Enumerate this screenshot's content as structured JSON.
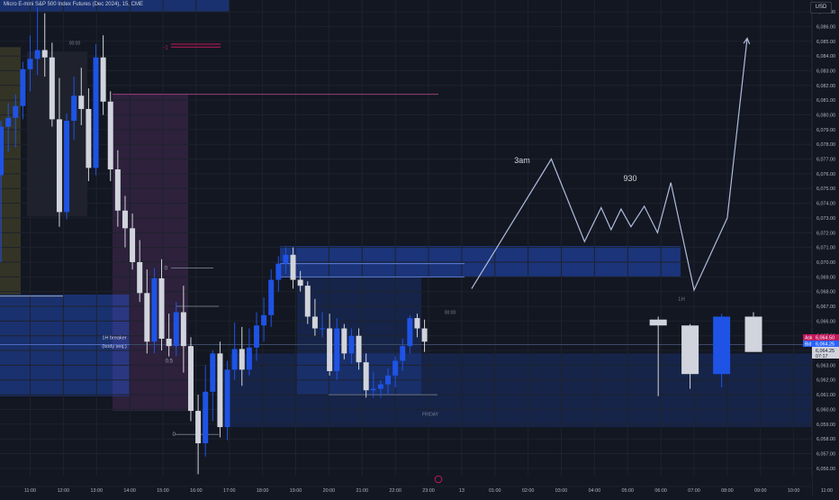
{
  "header": {
    "title": "Micro E-mini S&P 500 Index Futures (Dec 2024), 15, CME",
    "currency": "USD"
  },
  "chart_data": {
    "type": "candlestick",
    "title": "Micro E-mini S&P 500 Index Futures (Dec 2024), 15, CME",
    "y_axis": {
      "min": 6055.5,
      "max": 6087.8,
      "tick_labels": [
        "6,087.00",
        "6,086.00",
        "6,085.00",
        "6,084.00",
        "6,083.00",
        "6,082.00",
        "6,081.00",
        "6,080.00",
        "6,079.00",
        "6,078.00",
        "6,077.00",
        "6,076.00",
        "6,075.00",
        "6,074.00",
        "6,073.00",
        "6,072.00",
        "6,071.00",
        "6,070.00",
        "6,069.00",
        "6,068.00",
        "6,067.00",
        "6,066.00",
        "6,065.00",
        "6,064.00",
        "6,063.00",
        "6,062.00",
        "6,061.00",
        "6,060.00",
        "6,059.00",
        "6,058.00",
        "6,057.00",
        "6,056.00"
      ]
    },
    "x_axis": {
      "labels": [
        {
          "t": 11,
          "label": "11:00"
        },
        {
          "t": 12,
          "label": "12:00"
        },
        {
          "t": 13,
          "label": "13:00"
        },
        {
          "t": 14,
          "label": "14:00"
        },
        {
          "t": 15,
          "label": "15:00"
        },
        {
          "t": 16,
          "label": "16:00"
        },
        {
          "t": 17,
          "label": "17:00"
        },
        {
          "t": 18,
          "label": "18:00"
        },
        {
          "t": 19,
          "label": "19:00"
        },
        {
          "t": 20,
          "label": "20:00"
        },
        {
          "t": 21,
          "label": "21:00"
        },
        {
          "t": 22,
          "label": "22:00"
        },
        {
          "t": 23,
          "label": "23:00"
        },
        {
          "t": 24,
          "label": "13"
        },
        {
          "t": 25,
          "label": "01:00"
        },
        {
          "t": 26,
          "label": "02:00"
        },
        {
          "t": 27,
          "label": "03:00"
        },
        {
          "t": 28,
          "label": "04:00"
        },
        {
          "t": 29,
          "label": "05:00"
        },
        {
          "t": 30,
          "label": "06:00"
        },
        {
          "t": 31,
          "label": "07:00"
        },
        {
          "t": 32,
          "label": "08:00"
        },
        {
          "t": 33,
          "label": "09:00"
        },
        {
          "t": 34,
          "label": "10:00"
        },
        {
          "t": 35,
          "label": "11:00"
        }
      ]
    },
    "candles": [
      {
        "t": 10.12,
        "o": 6075.9,
        "h": 6079.6,
        "l": 6070.0,
        "c": 6079.2
      },
      {
        "t": 10.34,
        "o": 6079.2,
        "h": 6080.8,
        "l": 6077.5,
        "c": 6079.8
      },
      {
        "t": 10.56,
        "o": 6079.8,
        "h": 6081.4,
        "l": 6077.8,
        "c": 6080.6
      },
      {
        "t": 10.78,
        "o": 6080.6,
        "h": 6083.6,
        "l": 6079.7,
        "c": 6083.1
      },
      {
        "t": 11.0,
        "o": 6083.1,
        "h": 6085.4,
        "l": 6081.6,
        "c": 6083.8
      },
      {
        "t": 11.22,
        "o": 6083.8,
        "h": 6087.3,
        "l": 6082.7,
        "c": 6084.4
      },
      {
        "t": 11.44,
        "o": 6084.4,
        "h": 6086.9,
        "l": 6082.6,
        "c": 6083.9
      },
      {
        "t": 11.66,
        "o": 6083.9,
        "h": 6084.9,
        "l": 6079.2,
        "c": 6079.7
      },
      {
        "t": 11.88,
        "o": 6079.7,
        "h": 6082.5,
        "l": 6072.4,
        "c": 6073.4
      },
      {
        "t": 12.1,
        "o": 6073.4,
        "h": 6080.1,
        "l": 6072.9,
        "c": 6079.6
      },
      {
        "t": 12.32,
        "o": 6079.6,
        "h": 6082.6,
        "l": 6078.3,
        "c": 6081.3
      },
      {
        "t": 12.54,
        "o": 6081.3,
        "h": 6083.2,
        "l": 6079.3,
        "c": 6080.4
      },
      {
        "t": 12.76,
        "o": 6080.4,
        "h": 6081.8,
        "l": 6075.5,
        "c": 6076.4
      },
      {
        "t": 12.98,
        "o": 6076.4,
        "h": 6084.8,
        "l": 6075.9,
        "c": 6083.9
      },
      {
        "t": 13.2,
        "o": 6083.9,
        "h": 6085.4,
        "l": 6080.0,
        "c": 6080.9
      },
      {
        "t": 13.42,
        "o": 6080.9,
        "h": 6081.6,
        "l": 6075.5,
        "c": 6076.3
      },
      {
        "t": 13.64,
        "o": 6076.3,
        "h": 6077.6,
        "l": 6072.4,
        "c": 6073.5
      },
      {
        "t": 13.86,
        "o": 6073.5,
        "h": 6074.5,
        "l": 6071.0,
        "c": 6072.3
      },
      {
        "t": 14.08,
        "o": 6072.3,
        "h": 6073.3,
        "l": 6069.5,
        "c": 6070.0
      },
      {
        "t": 14.3,
        "o": 6070.0,
        "h": 6071.5,
        "l": 6067.3,
        "c": 6067.9
      },
      {
        "t": 14.52,
        "o": 6067.9,
        "h": 6069.5,
        "l": 6063.8,
        "c": 6064.6
      },
      {
        "t": 14.74,
        "o": 6064.6,
        "h": 6069.6,
        "l": 6063.8,
        "c": 6068.9
      },
      {
        "t": 14.96,
        "o": 6068.9,
        "h": 6070.2,
        "l": 6064.0,
        "c": 6064.8
      },
      {
        "t": 15.18,
        "o": 6064.8,
        "h": 6066.5,
        "l": 6063.6,
        "c": 6064.3
      },
      {
        "t": 15.4,
        "o": 6064.3,
        "h": 6067.3,
        "l": 6063.6,
        "c": 6066.6
      },
      {
        "t": 15.62,
        "o": 6066.6,
        "h": 6068.4,
        "l": 6062.5,
        "c": 6064.3
      },
      {
        "t": 15.84,
        "o": 6064.3,
        "h": 6064.9,
        "l": 6059.2,
        "c": 6059.9
      },
      {
        "t": 16.06,
        "o": 6059.9,
        "h": 6061.0,
        "l": 6055.6,
        "c": 6057.7
      },
      {
        "t": 16.28,
        "o": 6057.7,
        "h": 6063.0,
        "l": 6056.8,
        "c": 6061.2
      },
      {
        "t": 16.5,
        "o": 6061.2,
        "h": 6064.0,
        "l": 6059.2,
        "c": 6063.8
      },
      {
        "t": 16.72,
        "o": 6063.8,
        "h": 6064.6,
        "l": 6058.1,
        "c": 6058.8
      },
      {
        "t": 16.94,
        "o": 6058.8,
        "h": 6063.3,
        "l": 6057.9,
        "c": 6062.7
      },
      {
        "t": 17.16,
        "o": 6062.7,
        "h": 6065.9,
        "l": 6062.0,
        "c": 6064.1
      },
      {
        "t": 17.38,
        "o": 6064.1,
        "h": 6065.6,
        "l": 6061.6,
        "c": 6062.7
      },
      {
        "t": 17.6,
        "o": 6062.7,
        "h": 6065.5,
        "l": 6062.3,
        "c": 6064.2
      },
      {
        "t": 17.82,
        "o": 6064.2,
        "h": 6066.6,
        "l": 6063.3,
        "c": 6065.7
      },
      {
        "t": 18.04,
        "o": 6065.7,
        "h": 6067.6,
        "l": 6064.6,
        "c": 6066.4
      },
      {
        "t": 18.26,
        "o": 6066.4,
        "h": 6069.5,
        "l": 6065.6,
        "c": 6068.8
      },
      {
        "t": 18.48,
        "o": 6068.8,
        "h": 6070.4,
        "l": 6068.0,
        "c": 6069.9
      },
      {
        "t": 18.7,
        "o": 6069.9,
        "h": 6071.0,
        "l": 6069.2,
        "c": 6070.5
      },
      {
        "t": 18.92,
        "o": 6070.5,
        "h": 6071.0,
        "l": 6068.2,
        "c": 6068.8
      },
      {
        "t": 19.14,
        "o": 6068.8,
        "h": 6069.4,
        "l": 6068.0,
        "c": 6068.4
      },
      {
        "t": 19.36,
        "o": 6068.4,
        "h": 6068.7,
        "l": 6065.8,
        "c": 6066.3
      },
      {
        "t": 19.58,
        "o": 6066.3,
        "h": 6067.5,
        "l": 6065.0,
        "c": 6065.5
      },
      {
        "t": 19.8,
        "o": 6065.5,
        "h": 6066.6,
        "l": 6064.9,
        "c": 6065.5
      },
      {
        "t": 20.02,
        "o": 6065.5,
        "h": 6066.5,
        "l": 6062.3,
        "c": 6062.6
      },
      {
        "t": 20.24,
        "o": 6062.6,
        "h": 6066.2,
        "l": 6062.0,
        "c": 6065.5
      },
      {
        "t": 20.46,
        "o": 6065.5,
        "h": 6065.8,
        "l": 6063.4,
        "c": 6063.8
      },
      {
        "t": 20.68,
        "o": 6063.8,
        "h": 6065.5,
        "l": 6063.1,
        "c": 6065.0
      },
      {
        "t": 20.9,
        "o": 6065.0,
        "h": 6065.5,
        "l": 6062.7,
        "c": 6063.2
      },
      {
        "t": 21.12,
        "o": 6063.2,
        "h": 6063.8,
        "l": 6060.8,
        "c": 6061.3
      },
      {
        "t": 21.34,
        "o": 6061.3,
        "h": 6062.5,
        "l": 6060.8,
        "c": 6061.4
      },
      {
        "t": 21.56,
        "o": 6061.4,
        "h": 6062.0,
        "l": 6060.8,
        "c": 6061.7
      },
      {
        "t": 21.78,
        "o": 6061.7,
        "h": 6062.8,
        "l": 6061.0,
        "c": 6062.3
      },
      {
        "t": 22.0,
        "o": 6062.3,
        "h": 6063.6,
        "l": 6061.5,
        "c": 6063.3
      },
      {
        "t": 22.22,
        "o": 6063.3,
        "h": 6064.8,
        "l": 6062.6,
        "c": 6064.3
      },
      {
        "t": 22.44,
        "o": 6064.3,
        "h": 6066.4,
        "l": 6063.8,
        "c": 6066.2
      },
      {
        "t": 22.66,
        "o": 6066.2,
        "h": 6066.5,
        "l": 6064.9,
        "c": 6065.5
      },
      {
        "t": 22.88,
        "o": 6065.5,
        "h": 6066.1,
        "l": 6063.9,
        "c": 6064.6
      },
      {
        "t": 29.92,
        "o": 6066.1,
        "h": 6066.3,
        "l": 6060.9,
        "c": 6065.7
      },
      {
        "t": 30.88,
        "o": 6065.7,
        "h": 6065.8,
        "l": 6061.4,
        "c": 6062.4
      },
      {
        "t": 31.83,
        "o": 6062.4,
        "h": 6066.5,
        "l": 6061.5,
        "c": 6066.3
      },
      {
        "t": 32.79,
        "o": 6066.3,
        "h": 6066.6,
        "l": 6063.9,
        "c": 6063.9
      }
    ],
    "last_price": {
      "ask": "6,064.50",
      "bid": "6,064.25",
      "last": "6,064.25",
      "countdown": "07:17"
    },
    "annotations": {
      "fib_levels": [
        "0",
        "0.5",
        "0"
      ],
      "breaker_label_line1": "1H breaker",
      "breaker_label_line2": "(body seq.)",
      "label_0000_a": "00:00",
      "label_0000_b": "00:00",
      "label_friday": "FRIDAY",
      "label_1h": "1H",
      "marker_text": "-1",
      "label_3am": "3am",
      "label_930": "930"
    },
    "projection": [
      {
        "t": 24.3,
        "p": 6068.2
      },
      {
        "t": 26.7,
        "p": 6077.0
      },
      {
        "t": 27.7,
        "p": 6071.4
      },
      {
        "t": 28.2,
        "p": 6073.7
      },
      {
        "t": 28.5,
        "p": 6072.2
      },
      {
        "t": 28.8,
        "p": 6073.6
      },
      {
        "t": 29.1,
        "p": 6072.4
      },
      {
        "t": 29.5,
        "p": 6073.8
      },
      {
        "t": 29.9,
        "p": 6072.0
      },
      {
        "t": 30.3,
        "p": 6075.4
      },
      {
        "t": 31.0,
        "p": 6068.1
      },
      {
        "t": 32.0,
        "p": 6073.0
      },
      {
        "t": 32.6,
        "p": 6085.2
      }
    ],
    "colors": {
      "background": "#131722",
      "bull": "#1e53e5",
      "bear": "#d1d4dc",
      "grid": "#1e222d",
      "accent": "#2962ff"
    }
  }
}
